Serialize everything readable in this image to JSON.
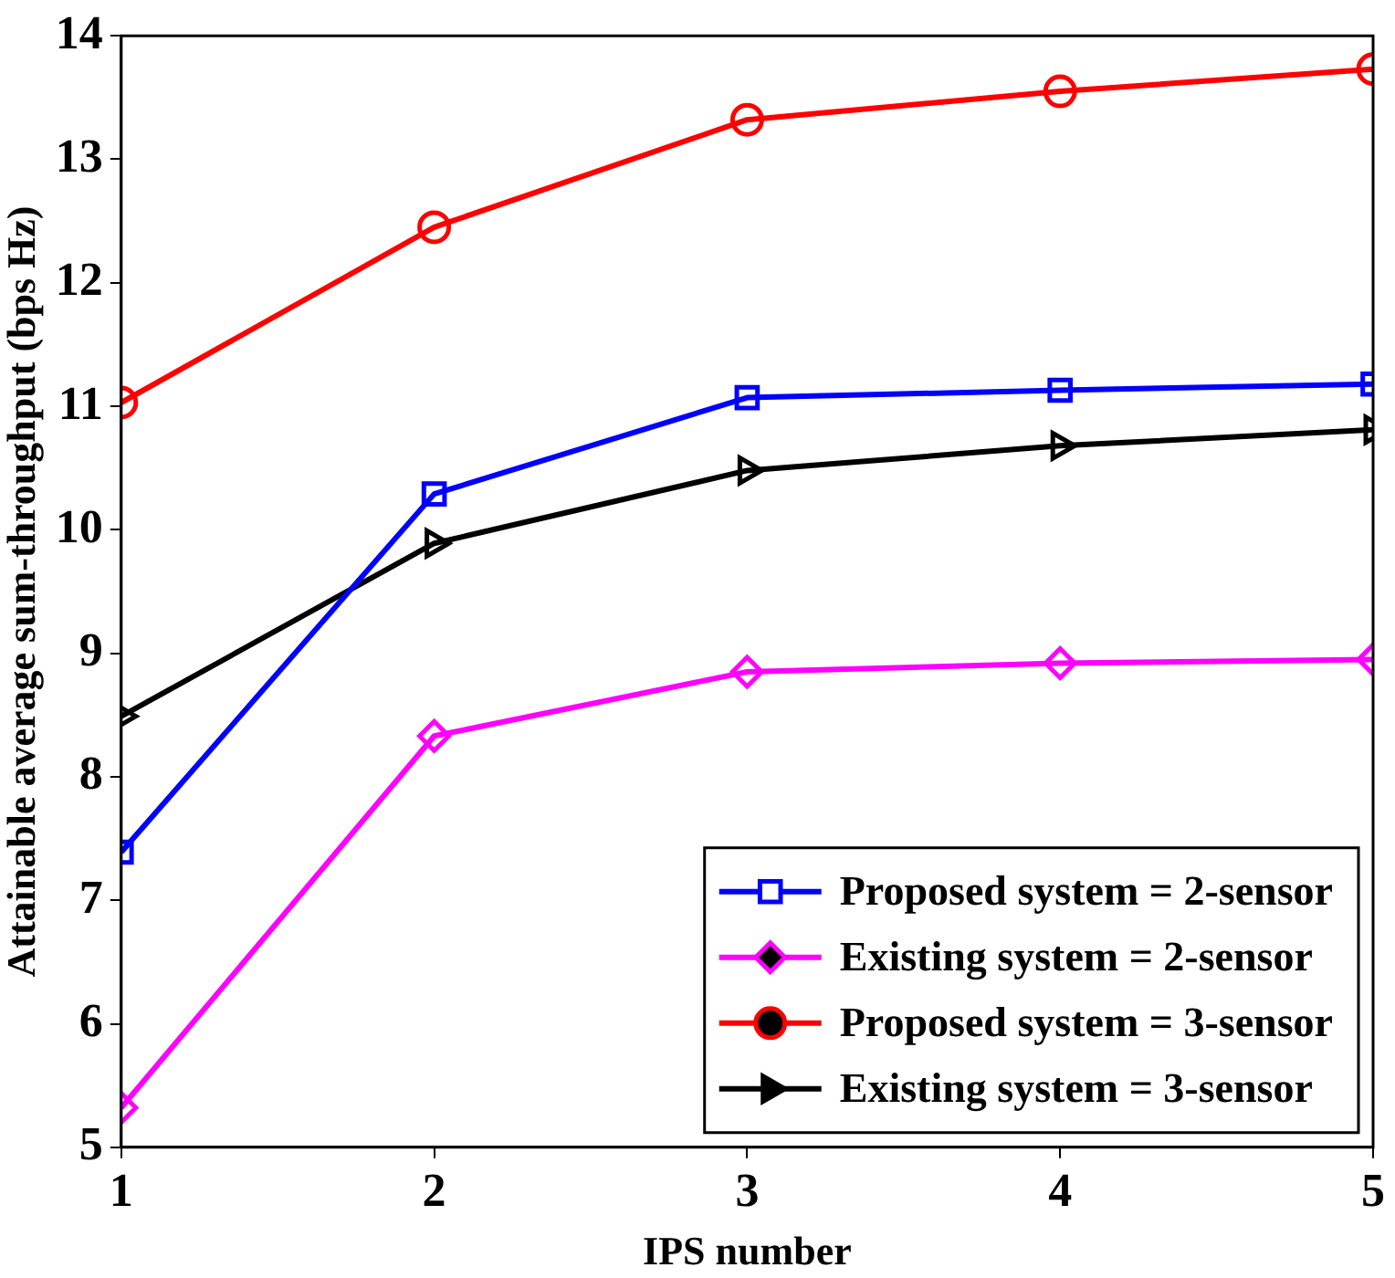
{
  "chart_data": {
    "type": "line",
    "xlabel": "IPS number",
    "ylabel": "Attainable average sum-throughput (bps Hz)",
    "x": [
      1,
      2,
      3,
      4,
      5
    ],
    "xlim": [
      1,
      5
    ],
    "xticks": [
      1,
      2,
      3,
      4,
      5
    ],
    "ylim": [
      5,
      14
    ],
    "yticks": [
      5,
      6,
      7,
      8,
      9,
      10,
      11,
      12,
      13,
      14
    ],
    "grid": false,
    "legend": "bottom right",
    "line_style": "solid",
    "series": [
      {
        "name": "Proposed system = 2-sensor",
        "color": "#0000ff",
        "marker": "square",
        "values": [
          7.39,
          10.29,
          11.07,
          11.13,
          11.18
        ]
      },
      {
        "name": "Existing system = 2-sensor",
        "color": "#ff00ff",
        "marker": "diamond",
        "values": [
          5.32,
          8.33,
          8.85,
          8.92,
          8.95
        ]
      },
      {
        "name": "Proposed system = 3-sensor",
        "color": "#ff0000",
        "marker": "circle",
        "values": [
          11.03,
          12.45,
          13.32,
          13.55,
          13.73
        ]
      },
      {
        "name": "Existing system = 3-sensor",
        "color": "#000000",
        "marker": "triangle",
        "values": [
          8.49,
          9.89,
          10.48,
          10.68,
          10.81
        ]
      }
    ]
  }
}
